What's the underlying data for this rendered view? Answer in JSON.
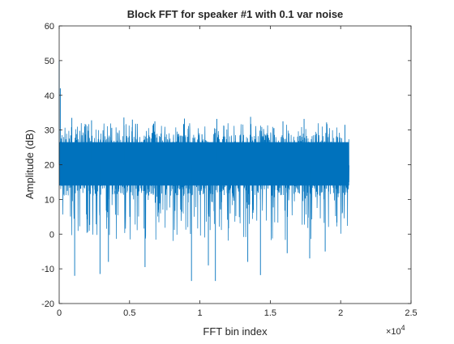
{
  "chart_data": {
    "type": "line",
    "title": "Block FFT for speaker #1 with 0.1 var noise",
    "xlabel": "FFT bin index",
    "ylabel": "Amplitude (dB)",
    "x_exponent_label": "×10",
    "x_exponent_power": "4",
    "xlim": [
      0,
      25000
    ],
    "ylim": [
      -20,
      60
    ],
    "xticks": [
      0,
      5000,
      10000,
      15000,
      20000,
      25000
    ],
    "xtick_labels": [
      "0",
      "0.5",
      "1",
      "1.5",
      "2",
      "2.5"
    ],
    "yticks": [
      -20,
      -10,
      0,
      10,
      20,
      30,
      40,
      50,
      60
    ],
    "ytick_labels": [
      "-20",
      "-10",
      "0",
      "10",
      "20",
      "30",
      "40",
      "50",
      "60"
    ],
    "grid": false,
    "series_color": "#0072BD",
    "series": [
      {
        "x_range": [
          0,
          20600
        ],
        "dense_band": [
          11,
          29
        ],
        "mean": 20,
        "upper_spikes": [
          {
            "x": 0,
            "y": 50
          },
          {
            "x": 80,
            "y": 42
          },
          {
            "x": 900,
            "y": 33.5
          },
          {
            "x": 2300,
            "y": 32.8
          },
          {
            "x": 4600,
            "y": 33.6
          },
          {
            "x": 5200,
            "y": 33
          },
          {
            "x": 6800,
            "y": 32.5
          },
          {
            "x": 8900,
            "y": 33.3
          },
          {
            "x": 11200,
            "y": 33.2
          },
          {
            "x": 13600,
            "y": 33.8
          },
          {
            "x": 15900,
            "y": 32.5
          },
          {
            "x": 17400,
            "y": 33.2
          },
          {
            "x": 19000,
            "y": 32.2
          },
          {
            "x": 20300,
            "y": 31.5
          }
        ],
        "lower_spikes": [
          {
            "x": 1100,
            "y": -12
          },
          {
            "x": 2900,
            "y": -11.5
          },
          {
            "x": 3500,
            "y": -8
          },
          {
            "x": 6100,
            "y": -9.5
          },
          {
            "x": 9400,
            "y": -13.5
          },
          {
            "x": 11100,
            "y": -13.5
          },
          {
            "x": 10600,
            "y": -9
          },
          {
            "x": 13400,
            "y": -8
          },
          {
            "x": 14300,
            "y": -11.8
          },
          {
            "x": 16200,
            "y": -5.5
          },
          {
            "x": 17800,
            "y": -7
          },
          {
            "x": 18900,
            "y": -5
          }
        ]
      }
    ]
  }
}
